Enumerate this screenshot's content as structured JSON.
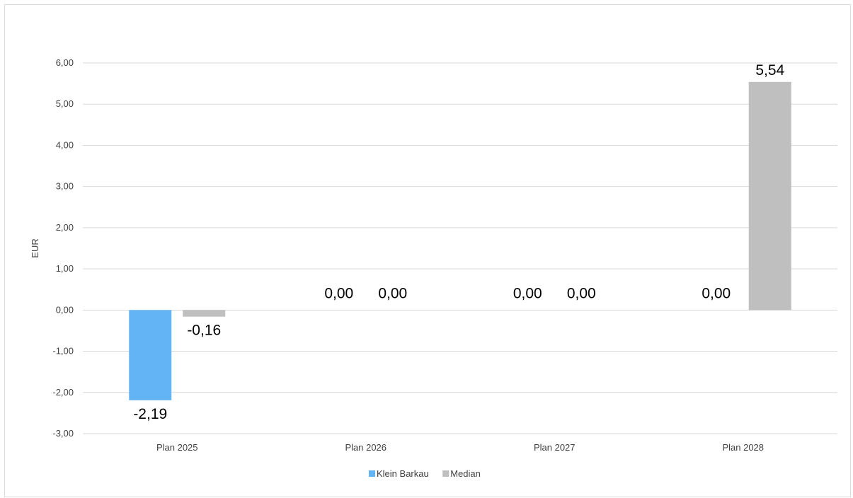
{
  "chart_data": {
    "type": "bar",
    "title": "",
    "xlabel": "",
    "ylabel": "EUR",
    "categories": [
      "Plan 2025",
      "Plan 2026",
      "Plan 2027",
      "Plan 2028"
    ],
    "series": [
      {
        "name": "Klein Barkau",
        "color": "#63b4f5",
        "values": [
          -2.19,
          0,
          0,
          0
        ]
      },
      {
        "name": "Median",
        "color": "#bfbfbf",
        "values": [
          -0.16,
          0,
          0,
          5.54
        ]
      }
    ],
    "data_labels": [
      [
        "-2,19",
        "0,00",
        "0,00",
        "0,00"
      ],
      [
        "-0,16",
        "0,00",
        "0,00",
        "5,54"
      ]
    ],
    "ylim": [
      -3,
      6
    ],
    "yticks": [
      6,
      5,
      4,
      3,
      2,
      1,
      0,
      -1,
      -2,
      -3
    ],
    "ytick_labels": [
      "6,00",
      "5,00",
      "4,00",
      "3,00",
      "2,00",
      "1,00",
      "0,00",
      "-1,00",
      "-2,00",
      "-3,00"
    ],
    "grid": true,
    "legend_position": "bottom"
  }
}
